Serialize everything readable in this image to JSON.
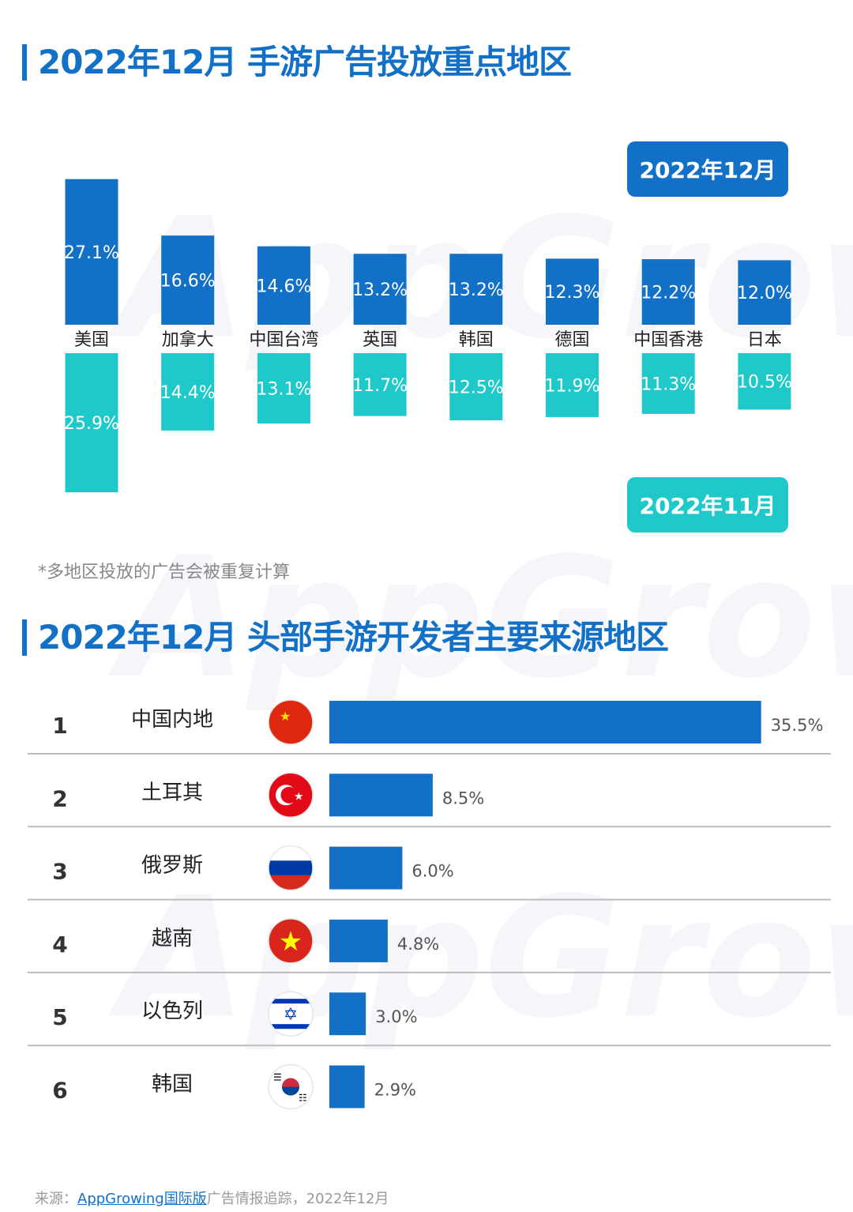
{
  "title1": "2022年12月 手游广告投放重点地区",
  "title2": "2022年12月 头部手游开发者主要来源地区",
  "note": "*多地区投放的广告会被重复计算",
  "source": {
    "prefix": "来源：",
    "link": "AppGrowing国际版",
    "suffix": "广告情报追踪，2022年12月"
  },
  "watermark": "AppGrowing",
  "colors": {
    "dec": "#1271c7",
    "nov": "#20c9c9"
  },
  "chart_data": [
    {
      "type": "bar",
      "title": "2022年12月 手游广告投放重点地区",
      "categories": [
        "美国",
        "加拿大",
        "中国台湾",
        "英国",
        "韩国",
        "德国",
        "中国香港",
        "日本"
      ],
      "series": [
        {
          "name": "2022年12月",
          "values": [
            27.1,
            16.6,
            14.6,
            13.2,
            13.2,
            12.3,
            12.2,
            12.0
          ],
          "labels": [
            "27.1%",
            "16.6%",
            "14.6%",
            "13.2%",
            "13.2%",
            "12.3%",
            "12.2%",
            "12.0%"
          ]
        },
        {
          "name": "2022年11月",
          "values": [
            25.9,
            14.4,
            13.1,
            11.7,
            12.5,
            11.9,
            11.3,
            10.5
          ],
          "labels": [
            "25.9%",
            "14.4%",
            "13.1%",
            "11.7%",
            "12.5%",
            "11.9%",
            "11.3%",
            "10.5%"
          ]
        }
      ],
      "legend": [
        "2022年12月",
        "2022年11月"
      ],
      "unit": "%"
    },
    {
      "type": "bar",
      "orientation": "horizontal",
      "title": "2022年12月 头部手游开发者主要来源地区",
      "ranks": [
        "1",
        "2",
        "3",
        "4",
        "5",
        "6"
      ],
      "categories": [
        "中国内地",
        "土耳其",
        "俄罗斯",
        "越南",
        "以色列",
        "韩国"
      ],
      "flags": [
        "china-flag",
        "turkey-flag",
        "russia-flag",
        "vietnam-flag",
        "israel-flag",
        "korea-flag"
      ],
      "values": [
        35.5,
        8.5,
        6.0,
        4.8,
        3.0,
        2.9
      ],
      "labels": [
        "35.5%",
        "8.5%",
        "6.0%",
        "4.8%",
        "3.0%",
        "2.9%"
      ]
    }
  ]
}
